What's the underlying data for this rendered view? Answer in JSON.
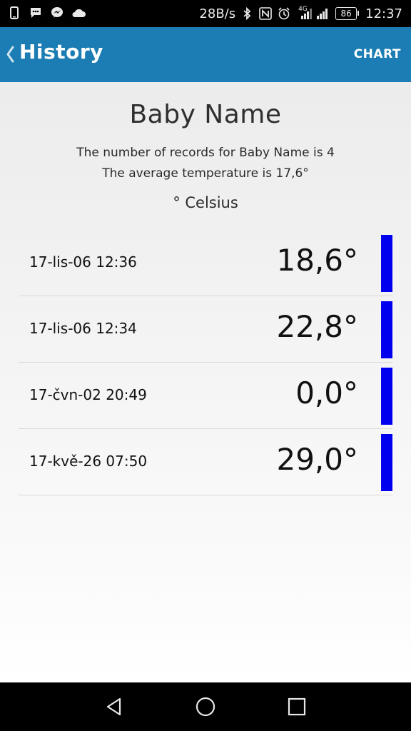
{
  "status_bar": {
    "speed": "28B/s",
    "network_label": "4G",
    "battery": "86",
    "time": "12:37",
    "icons": [
      "phone-icon",
      "message-icon",
      "messenger-icon",
      "cloud-icon",
      "bluetooth-icon",
      "nfc-icon",
      "alarm-icon",
      "signal-icon",
      "signal-icon",
      "battery-icon"
    ]
  },
  "app_bar": {
    "title": "History",
    "chart_label": "CHART",
    "color": "#1b7db3"
  },
  "summary": {
    "baby_name": "Baby Name",
    "records_text": "The number of records for Baby Name is 4",
    "average_text": "The average temperature is 17,6°",
    "unit": "° Celsius"
  },
  "records": [
    {
      "date": "17-lis-06 12:36",
      "temp": "18,6°",
      "bar_color": "#0000ee"
    },
    {
      "date": "17-lis-06 12:34",
      "temp": "22,8°",
      "bar_color": "#0000ee"
    },
    {
      "date": "17-čvn-02 20:49",
      "temp": "0,0°",
      "bar_color": "#0000ee"
    },
    {
      "date": "17-kvě-26 07:50",
      "temp": "29,0°",
      "bar_color": "#0000ee"
    }
  ],
  "nav": {
    "icons": [
      "back-icon",
      "home-icon",
      "recents-icon"
    ]
  }
}
